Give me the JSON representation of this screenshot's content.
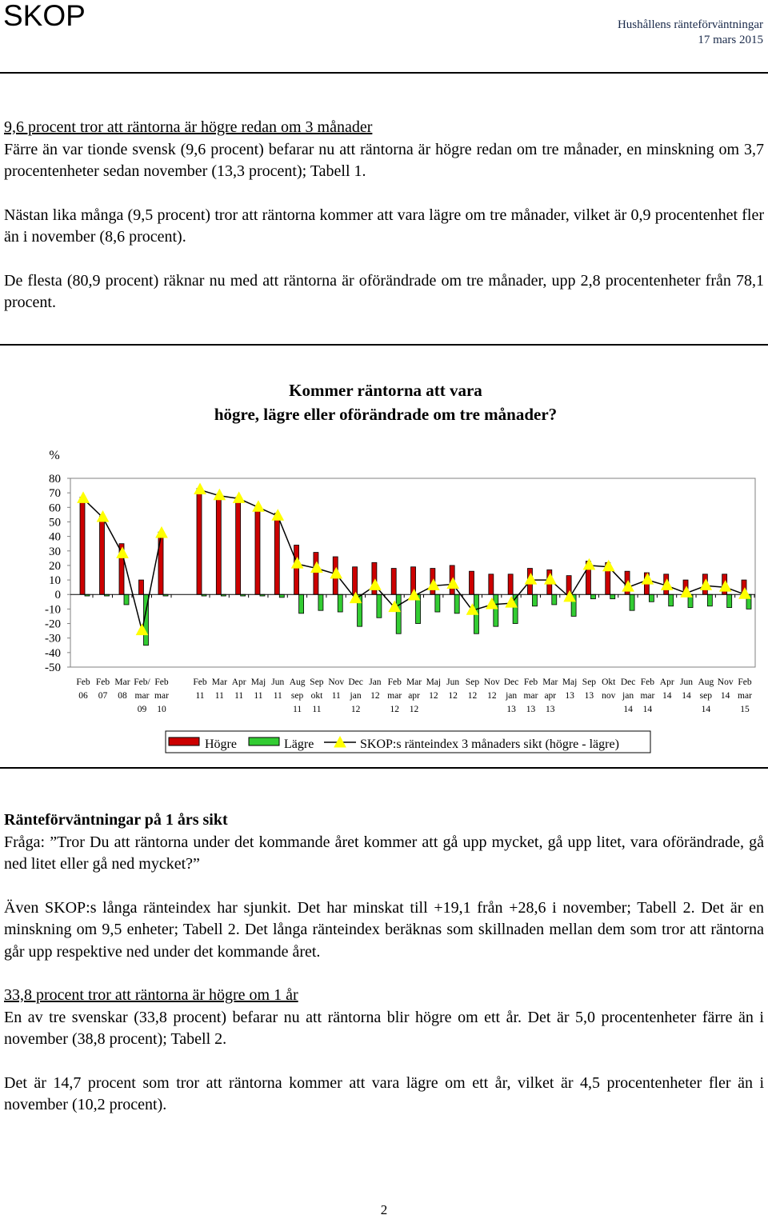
{
  "header": {
    "brand": "SKOP",
    "title": "Hushållens ränteförväntningar",
    "date": "17 mars 2015"
  },
  "section1": {
    "heading": "9,6 procent tror att räntorna är högre redan om 3 månader",
    "p1": "Färre än var tionde svensk (9,6 procent) befarar nu att räntorna är högre redan om tre månader, en minskning om 3,7 procentenheter sedan november (13,3 procent); Tabell 1.",
    "p2": "Nästan lika många (9,5 procent) tror att räntorna kommer att vara lägre om tre månader, vilket är 0,9 procentenhet fler än i november (8,6 procent).",
    "p3": "De flesta (80,9 procent) räknar nu med att räntorna är oförändrade om tre månader, upp 2,8 procentenheter från 78,1 procent."
  },
  "chart_data": {
    "type": "bar",
    "title": "Kommer räntorna att vara",
    "subtitle": "högre, lägre eller oförändrade om tre månader?",
    "ylabel": "%",
    "ylim": [
      -50,
      80
    ],
    "yticks": [
      80,
      70,
      60,
      50,
      40,
      30,
      20,
      10,
      0,
      -10,
      -20,
      -30,
      -40,
      -50
    ],
    "categories": [
      [
        "Feb",
        "06"
      ],
      [
        "Feb",
        "07"
      ],
      [
        "Mar",
        "08"
      ],
      [
        "Feb/",
        "mar",
        "09"
      ],
      [
        "Feb",
        "mar",
        "10"
      ],
      [
        "Feb",
        "11"
      ],
      [
        "Mar",
        "11"
      ],
      [
        "Apr",
        "11"
      ],
      [
        "Maj",
        "11"
      ],
      [
        "Jun",
        "11"
      ],
      [
        "Aug",
        "sep",
        "11"
      ],
      [
        "Sep",
        "okt",
        "11"
      ],
      [
        "Nov",
        "11"
      ],
      [
        "Dec",
        "jan",
        "12"
      ],
      [
        "Jan",
        "12"
      ],
      [
        "Feb",
        "mar",
        "12"
      ],
      [
        "Mar",
        "apr",
        "12"
      ],
      [
        "Maj",
        "12"
      ],
      [
        "Jun",
        "12"
      ],
      [
        "Sep",
        "12"
      ],
      [
        "Nov",
        "12"
      ],
      [
        "Dec",
        "jan",
        "13"
      ],
      [
        "Feb",
        "mar",
        "13"
      ],
      [
        "Mar",
        "apr",
        "13"
      ],
      [
        "Maj",
        "13"
      ],
      [
        "Sep",
        "13"
      ],
      [
        "Okt",
        "nov"
      ],
      [
        "Dec",
        "jan",
        "14"
      ],
      [
        "Feb",
        "mar",
        "14"
      ],
      [
        "Apr",
        "14"
      ],
      [
        "Jun",
        "14"
      ],
      [
        "Aug",
        "sep",
        "14"
      ],
      [
        "Nov",
        "14"
      ],
      [
        "Feb",
        "mar",
        "15"
      ]
    ],
    "series": [
      {
        "name": "Högre",
        "color": "#cc0000",
        "values": [
          67,
          54,
          35,
          10,
          43,
          73,
          69,
          67,
          61,
          56,
          34,
          29,
          26,
          19,
          22,
          18,
          19,
          18,
          20,
          16,
          14,
          14,
          18,
          17,
          13,
          23,
          22,
          16,
          15,
          14,
          10,
          14,
          14,
          10
        ]
      },
      {
        "name": "Lägre",
        "color": "#33cc33",
        "values": [
          -1,
          -1,
          -7,
          -35,
          -1,
          -1,
          -1,
          -1,
          -1,
          -2,
          -13,
          -11,
          -12,
          -22,
          -16,
          -27,
          -20,
          -12,
          -13,
          -27,
          -22,
          -20,
          -8,
          -7,
          -15,
          -3,
          -3,
          -11,
          -5,
          -8,
          -9,
          -8,
          -9,
          -10
        ]
      },
      {
        "name": "SKOP:s ränteindex 3 månaders sikt (högre - lägre)",
        "color": "#ffff00",
        "values": [
          66,
          53,
          28,
          -25,
          42,
          72,
          68,
          66,
          60,
          54,
          21,
          18,
          14,
          -3,
          6,
          -9,
          -1,
          6,
          7,
          -11,
          -7,
          -6,
          10,
          10,
          -2,
          20,
          19,
          5,
          10,
          6,
          1,
          6,
          5,
          0
        ]
      }
    ],
    "legend_position": "bottom",
    "grid": false
  },
  "section2": {
    "heading": "Ränteförväntningar på 1 års sikt",
    "p1": "Fråga: ”Tror Du att räntorna under det kommande året kommer att gå upp mycket, gå upp litet, vara oförändrade, gå ned litet eller gå ned mycket?”",
    "p2": "Även SKOP:s långa ränteindex har sjunkit. Det har minskat till +19,1 från +28,6 i november; Tabell 2. Det är en minskning om 9,5 enheter; Tabell 2. Det långa ränteindex beräknas som skillnaden mellan dem som tror att räntorna går upp respektive ned under det kommande året.",
    "subheading": "33,8 procent tror att räntorna är högre om 1 år",
    "p3": "En av tre svenskar (33,8 procent) befarar nu att räntorna blir högre om ett år. Det är 5,0 procentenheter färre än i november (38,8 procent); Tabell 2.",
    "p4": "Det är 14,7 procent som tror att räntorna kommer att vara lägre om ett år, vilket är 4,5 procentenheter fler än i november (10,2 procent)."
  },
  "footer": {
    "page_number": "2"
  }
}
